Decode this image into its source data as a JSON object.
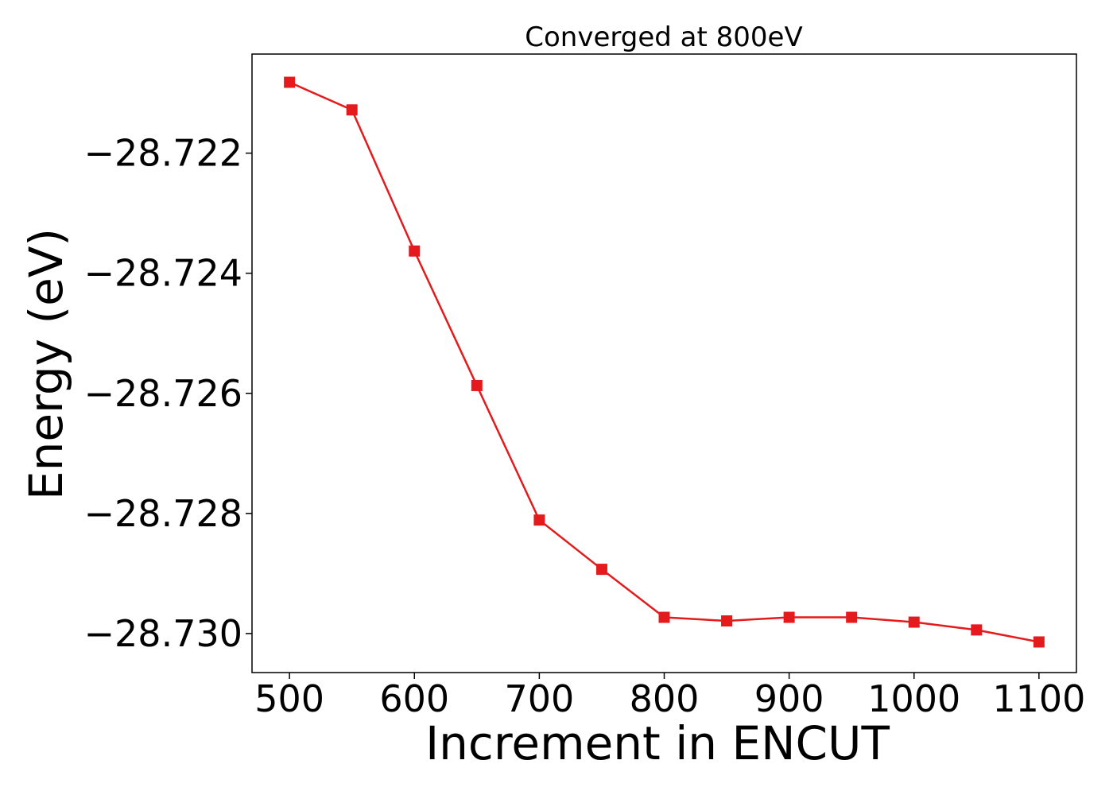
{
  "chart_data": {
    "type": "line",
    "title": "Converged at 800eV",
    "xlabel": "Increment in ENCUT",
    "ylabel": "Energy (eV)",
    "xlim": [
      470,
      1130
    ],
    "ylim": [
      -28.73065,
      -28.72035
    ],
    "x_ticks": [
      500,
      600,
      700,
      800,
      900,
      1000,
      1100
    ],
    "y_ticks": [
      -28.722,
      -28.724,
      -28.726,
      -28.728,
      -28.73
    ],
    "y_tick_labels": [
      "−28.722",
      "−28.724",
      "−28.726",
      "−28.728",
      "−28.730"
    ],
    "grid": false,
    "series": [
      {
        "color": "#e41a1c",
        "marker": "square",
        "x": [
          500,
          550,
          600,
          650,
          700,
          750,
          800,
          850,
          900,
          950,
          1000,
          1050,
          1100
        ],
        "y": [
          -28.72082,
          -28.72128,
          -28.72363,
          -28.72587,
          -28.72811,
          -28.72893,
          -28.72973,
          -28.72979,
          -28.72973,
          -28.72973,
          -28.72981,
          -28.72994,
          -28.73014
        ]
      }
    ]
  }
}
